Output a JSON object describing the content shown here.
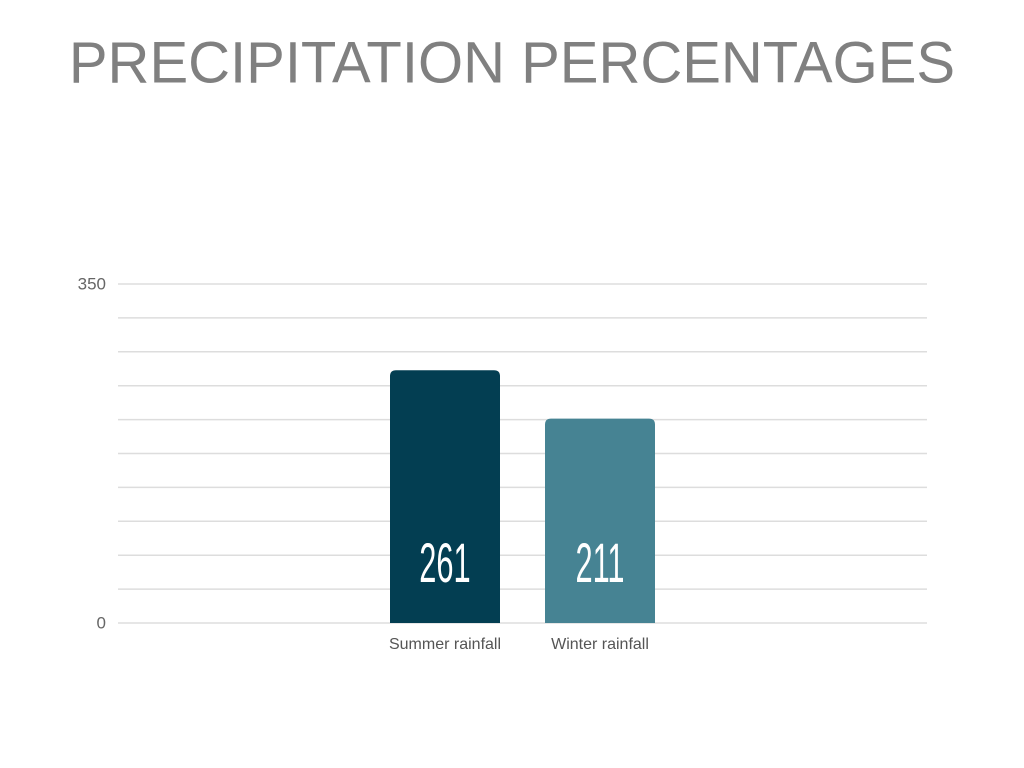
{
  "chart_data": {
    "type": "bar",
    "title": "PRECIPITATION PERCENTAGES",
    "categories": [
      "Summer rainfall",
      "Winter rainfall"
    ],
    "values": [
      261,
      211
    ],
    "colors": [
      "#033e52",
      "#468393"
    ],
    "ylim": [
      0,
      350
    ],
    "yticks": [
      0,
      350
    ],
    "minor_yticks": [
      35,
      70,
      105,
      140,
      175,
      210,
      245,
      280,
      315
    ],
    "grid": true
  }
}
